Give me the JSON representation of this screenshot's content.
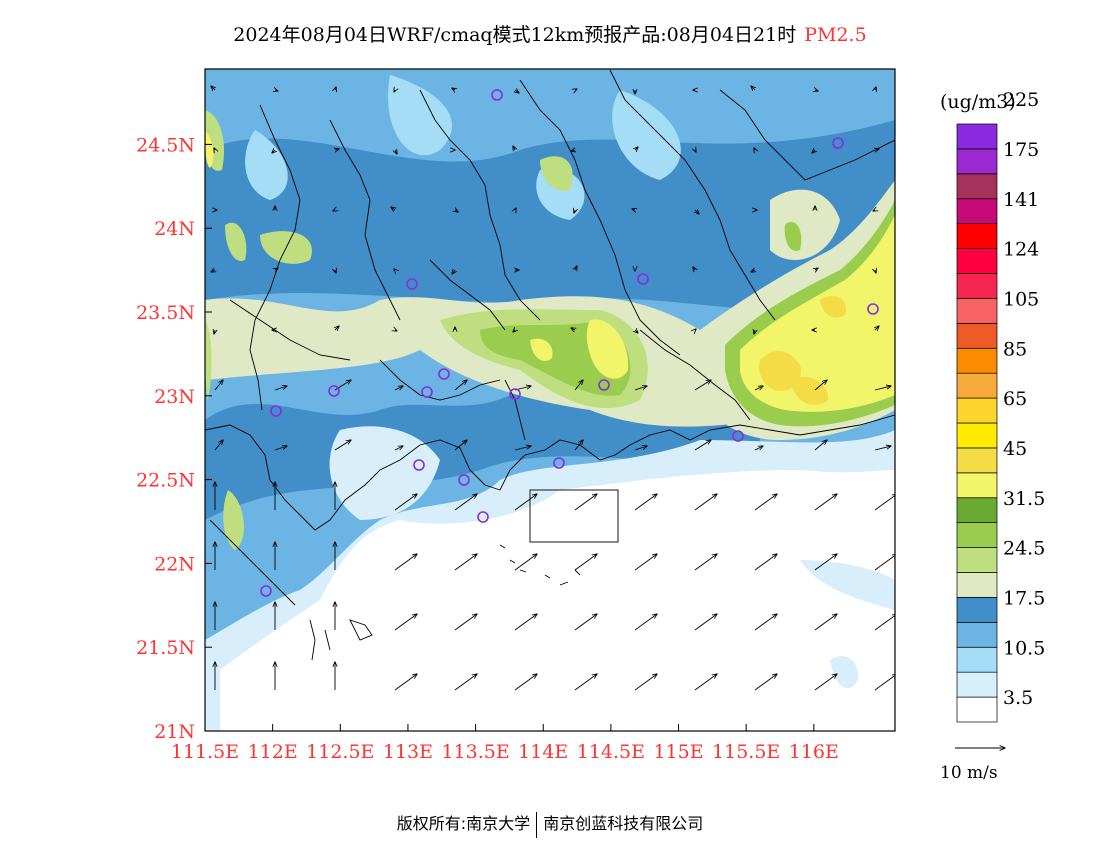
{
  "title": {
    "text": "2024年08月04日WRF/cmaq模式12km预报产品:08月04日21时",
    "pollutant": "PM2.5",
    "pollutant_color": "#ff3333"
  },
  "axes": {
    "lat_labels": [
      "24.5N",
      "24N",
      "23.5N",
      "23N",
      "22.5N",
      "22N",
      "21.5N",
      "21N"
    ],
    "lat_values": [
      24.5,
      24.0,
      23.5,
      23.0,
      22.5,
      22.0,
      21.5,
      21.0
    ],
    "lon_labels": [
      "111.5E",
      "112E",
      "112.5E",
      "113E",
      "113.5E",
      "114E",
      "114.5E",
      "115E",
      "115.5E",
      "116E"
    ],
    "lon_values": [
      111.5,
      112.0,
      112.5,
      113.0,
      113.5,
      114.0,
      114.5,
      115.0,
      115.5,
      116.0
    ],
    "lon_range": [
      111.5,
      116.6
    ],
    "lat_range": [
      21.0,
      24.95
    ],
    "label_color": "#ff3333"
  },
  "legend": {
    "unit": "(ug/m3)",
    "colors": [
      "#ffffff",
      "#d8eefa",
      "#a5dcf6",
      "#6cb4e4",
      "#428ec8",
      "#dfe9c6",
      "#bfde7f",
      "#9acd4e",
      "#6aaa34",
      "#f2f46a",
      "#f4dc46",
      "#ffeb00",
      "#fcd42e",
      "#f6aa3a",
      "#fb8c00",
      "#ee5a28",
      "#f86262",
      "#f5264f",
      "#ff003e",
      "#ff0000",
      "#c80a78",
      "#a6325c",
      "#9b29cf",
      "#8a2be2"
    ],
    "labels": [
      "3.5",
      "10.5",
      "17.5",
      "24.5",
      "31.5",
      "45",
      "65",
      "85",
      "105",
      "124",
      "141",
      "175",
      "225"
    ],
    "vector_ref": "10 m/s"
  },
  "footer": {
    "copyright": "版权所有:南京大学",
    "company": "南京创蓝科技有限公司"
  }
}
